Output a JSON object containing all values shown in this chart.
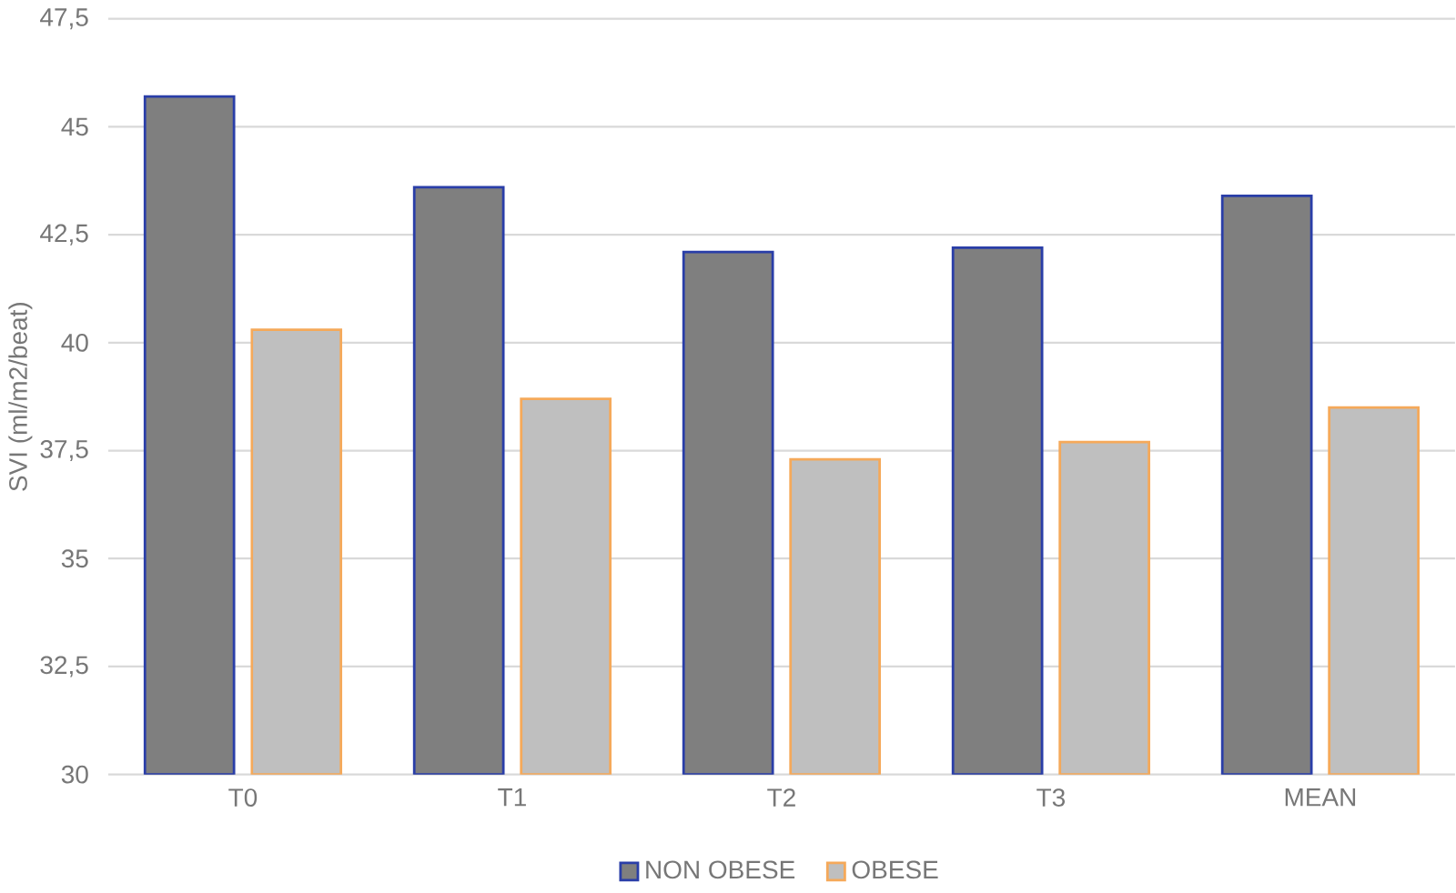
{
  "chart_data": {
    "type": "bar",
    "ylabel": "SVI (ml/m2/beat)",
    "categories": [
      "T0",
      "T1",
      "T2",
      "T3",
      "MEAN"
    ],
    "series": [
      {
        "name": "NON OBESE",
        "color": "#7f7f7f",
        "values": [
          45.7,
          43.6,
          42.1,
          42.2,
          43.4
        ]
      },
      {
        "name": "OBESE",
        "color": "#bfbfbf",
        "values": [
          40.3,
          38.7,
          37.3,
          37.7,
          38.5
        ]
      }
    ],
    "ylim": [
      30,
      47.5
    ],
    "yticks": [
      30,
      {
        "value": 32.5,
        "label": "32,5"
      },
      35,
      {
        "value": 37.5,
        "label": "37,5"
      },
      40,
      {
        "value": 42.5,
        "label": "42,5"
      },
      45,
      {
        "value": 47.5,
        "label": "47,5"
      }
    ],
    "grid": "y",
    "legend": "bottom"
  }
}
